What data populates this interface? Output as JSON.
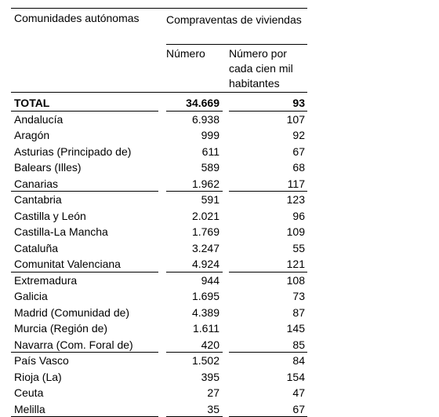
{
  "header": {
    "col_region": "Comunidades autónomas",
    "group": "Compraventas de viviendas",
    "col_number": "Número",
    "col_rate": "Número por cada cien mil habitantes"
  },
  "rows": [
    {
      "name": "TOTAL",
      "number": "34.669",
      "rate": "93"
    },
    {
      "name": "Andalucía",
      "number": "6.938",
      "rate": "107"
    },
    {
      "name": "Aragón",
      "number": "999",
      "rate": "92"
    },
    {
      "name": "Asturias (Principado de)",
      "number": "611",
      "rate": "67"
    },
    {
      "name": "Balears (Illes)",
      "number": "589",
      "rate": "68"
    },
    {
      "name": "Canarias",
      "number": "1.962",
      "rate": "117"
    },
    {
      "name": "Cantabria",
      "number": "591",
      "rate": "123"
    },
    {
      "name": "Castilla y León",
      "number": "2.021",
      "rate": "96"
    },
    {
      "name": "Castilla-La Mancha",
      "number": "1.769",
      "rate": "109"
    },
    {
      "name": "Cataluña",
      "number": "3.247",
      "rate": "55"
    },
    {
      "name": "Comunitat Valenciana",
      "number": "4.924",
      "rate": "121"
    },
    {
      "name": "Extremadura",
      "number": "944",
      "rate": "108"
    },
    {
      "name": "Galicia",
      "number": "1.695",
      "rate": "73"
    },
    {
      "name": "Madrid (Comunidad de)",
      "number": "4.389",
      "rate": "87"
    },
    {
      "name": "Murcia (Región de)",
      "number": "1.611",
      "rate": "145"
    },
    {
      "name": "Navarra (Com. Foral de)",
      "number": "420",
      "rate": "85"
    },
    {
      "name": "País Vasco",
      "number": "1.502",
      "rate": "84"
    },
    {
      "name": "Rioja (La)",
      "number": "395",
      "rate": "154"
    },
    {
      "name": "Ceuta",
      "number": "27",
      "rate": "47"
    },
    {
      "name": "Melilla",
      "number": "35",
      "rate": "67"
    }
  ]
}
